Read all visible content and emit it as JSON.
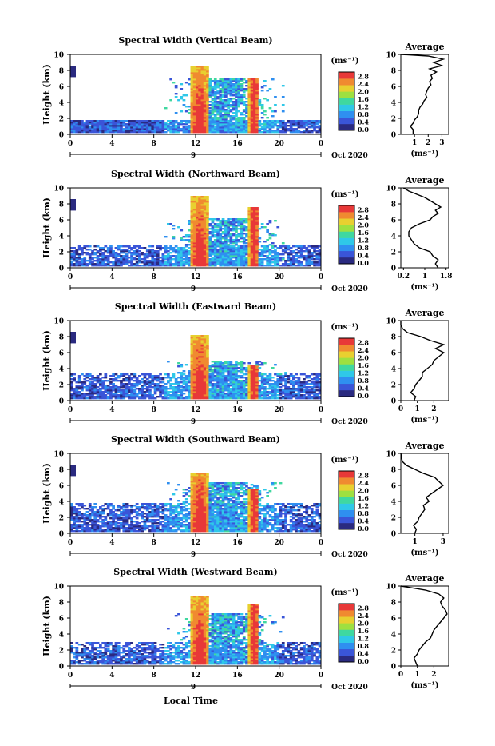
{
  "figure": {
    "xlabel": "Local Time",
    "date_label": "Oct 2020",
    "day_label": "9",
    "ylabel": "Height (km)",
    "cb_unit": "(ms⁻¹)",
    "avg_title": "Average",
    "avg_unit": "(ms⁻¹)",
    "x_ticks": [
      "0",
      "4",
      "8",
      "12",
      "16",
      "20",
      "0"
    ],
    "y_ticks": [
      "0",
      "2",
      "4",
      "6",
      "8",
      "10"
    ],
    "cb_ticks": [
      "0.0",
      "0.4",
      "0.8",
      "1.2",
      "1.6",
      "2.0",
      "2.4",
      "2.8"
    ],
    "cb_colors": [
      "#2a2a80",
      "#3a55d8",
      "#2f8ff0",
      "#2fc8e8",
      "#3fd8a0",
      "#9ee040",
      "#e8d030",
      "#f08a30",
      "#e83838"
    ]
  },
  "chart_data": [
    {
      "type": "heatmap",
      "title": "Spectral Width (Vertical Beam)",
      "xlim": [
        0,
        24
      ],
      "ylim": [
        0,
        10
      ],
      "avg": {
        "xticks": [
          "1",
          "2",
          "3"
        ],
        "xlim": [
          0,
          3.5
        ],
        "profile": [
          [
            0,
            0.9
          ],
          [
            0.6,
            0.9
          ],
          [
            1,
            0.7
          ],
          [
            1.4,
            0.9
          ],
          [
            1.8,
            1.0
          ],
          [
            2.2,
            1.2
          ],
          [
            2.6,
            1.3
          ],
          [
            3,
            1.3
          ],
          [
            3.4,
            1.4
          ],
          [
            3.8,
            1.6
          ],
          [
            4.2,
            1.7
          ],
          [
            4.6,
            1.9
          ],
          [
            5,
            1.8
          ],
          [
            5.4,
            1.9
          ],
          [
            5.8,
            2.0
          ],
          [
            6.2,
            2.2
          ],
          [
            6.6,
            2.1
          ],
          [
            7,
            2.3
          ],
          [
            7.4,
            2.2
          ],
          [
            7.8,
            2.6
          ],
          [
            8.2,
            2.1
          ],
          [
            8.6,
            3.0
          ],
          [
            9,
            2.4
          ],
          [
            9.4,
            3.1
          ],
          [
            9.8,
            2.0
          ],
          [
            10,
            0.0
          ]
        ]
      }
    },
    {
      "type": "heatmap",
      "title": "Spectral Width (Northward Beam)",
      "xlim": [
        0,
        24
      ],
      "ylim": [
        0,
        10
      ],
      "avg": {
        "xticks": [
          "0.2",
          "1",
          "1.8"
        ],
        "xlim": [
          0.1,
          1.9
        ],
        "profile": [
          [
            0,
            1.5
          ],
          [
            0.5,
            1.4
          ],
          [
            1,
            1.5
          ],
          [
            1.5,
            1.3
          ],
          [
            2,
            1.2
          ],
          [
            2.5,
            0.8
          ],
          [
            3,
            0.6
          ],
          [
            3.5,
            0.5
          ],
          [
            4,
            0.4
          ],
          [
            4.5,
            0.4
          ],
          [
            5,
            0.5
          ],
          [
            5.5,
            0.8
          ],
          [
            6,
            1.2
          ],
          [
            6.4,
            1.3
          ],
          [
            6.8,
            1.5
          ],
          [
            7.2,
            1.4
          ],
          [
            7.6,
            1.6
          ],
          [
            8,
            1.4
          ],
          [
            8.4,
            1.2
          ],
          [
            8.8,
            1.0
          ],
          [
            9.2,
            0.7
          ],
          [
            9.6,
            0.4
          ],
          [
            10,
            0.2
          ]
        ]
      }
    },
    {
      "type": "heatmap",
      "title": "Spectral Width (Eastward Beam)",
      "xlim": [
        0,
        24
      ],
      "ylim": [
        0,
        10
      ],
      "avg": {
        "xticks": [
          "0",
          "1",
          "2"
        ],
        "xlim": [
          0,
          2.9
        ],
        "profile": [
          [
            0,
            0.8
          ],
          [
            0.5,
            0.9
          ],
          [
            1,
            0.6
          ],
          [
            1.5,
            0.8
          ],
          [
            2,
            0.9
          ],
          [
            2.5,
            1.1
          ],
          [
            3,
            1.3
          ],
          [
            3.5,
            1.3
          ],
          [
            4,
            1.6
          ],
          [
            4.5,
            1.9
          ],
          [
            5,
            2.0
          ],
          [
            5.5,
            2.3
          ],
          [
            6,
            2.6
          ],
          [
            6.5,
            2.1
          ],
          [
            7,
            2.6
          ],
          [
            7.5,
            1.8
          ],
          [
            8,
            1.2
          ],
          [
            8.5,
            0.4
          ],
          [
            9,
            0.1
          ],
          [
            9.5,
            0.0
          ],
          [
            10,
            0.0
          ]
        ]
      }
    },
    {
      "type": "heatmap",
      "title": "Spectral Width (Southward Beam)",
      "xlim": [
        0,
        24
      ],
      "ylim": [
        0,
        10
      ],
      "avg": {
        "xticks": [
          "1",
          "3"
        ],
        "xlim": [
          0,
          3.4
        ],
        "profile": [
          [
            0,
            1.0
          ],
          [
            0.5,
            1.1
          ],
          [
            1,
            0.9
          ],
          [
            1.5,
            1.2
          ],
          [
            2,
            1.3
          ],
          [
            2.5,
            1.5
          ],
          [
            3,
            1.7
          ],
          [
            3.5,
            1.6
          ],
          [
            4,
            2.0
          ],
          [
            4.5,
            1.8
          ],
          [
            5,
            2.2
          ],
          [
            5.5,
            2.6
          ],
          [
            6,
            3.0
          ],
          [
            6.5,
            2.7
          ],
          [
            7,
            2.4
          ],
          [
            7.5,
            1.6
          ],
          [
            8,
            1.0
          ],
          [
            8.5,
            0.4
          ],
          [
            9,
            0.1
          ],
          [
            10,
            0.0
          ]
        ]
      }
    },
    {
      "type": "heatmap",
      "title": "Spectral Width (Westward Beam)",
      "xlim": [
        0,
        24
      ],
      "ylim": [
        0,
        10
      ],
      "avg": {
        "xticks": [
          "0",
          "1",
          "2"
        ],
        "xlim": [
          0,
          2.9
        ],
        "profile": [
          [
            0,
            1.0
          ],
          [
            0.5,
            0.9
          ],
          [
            1,
            0.8
          ],
          [
            1.5,
            1.0
          ],
          [
            2,
            1.1
          ],
          [
            2.5,
            1.3
          ],
          [
            3,
            1.5
          ],
          [
            3.5,
            1.8
          ],
          [
            4,
            1.9
          ],
          [
            4.5,
            2.0
          ],
          [
            5,
            2.2
          ],
          [
            5.5,
            2.4
          ],
          [
            6,
            2.6
          ],
          [
            6.5,
            2.8
          ],
          [
            7,
            2.7
          ],
          [
            7.5,
            2.5
          ],
          [
            8,
            2.4
          ],
          [
            8.5,
            2.6
          ],
          [
            9,
            2.3
          ],
          [
            9.5,
            1.5
          ],
          [
            10,
            0.0
          ]
        ]
      }
    }
  ]
}
